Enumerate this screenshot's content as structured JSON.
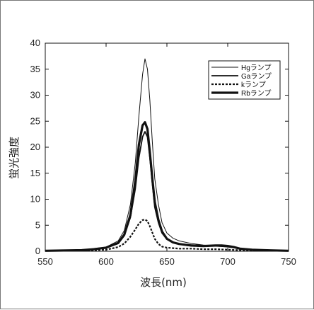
{
  "chart_data": {
    "type": "line",
    "title": "",
    "xlabel": "波長(nm)",
    "ylabel": "蛍光強度",
    "xlim": [
      550,
      750
    ],
    "ylim": [
      0,
      40
    ],
    "xticks": [
      550,
      600,
      650,
      700,
      750
    ],
    "yticks": [
      0,
      5,
      10,
      15,
      20,
      25,
      30,
      35,
      40
    ],
    "grid": false,
    "legend_position": "top-right",
    "series": [
      {
        "name": "Hgランプ",
        "style": "solid-thin",
        "x": [
          550,
          580,
          590,
          600,
          610,
          615,
          620,
          624,
          627,
          630,
          632,
          634,
          636,
          638,
          640,
          643,
          646,
          650,
          655,
          660,
          670,
          680,
          690,
          700,
          710,
          720,
          730,
          750
        ],
        "y": [
          0.1,
          0.2,
          0.5,
          0.8,
          2.0,
          4.0,
          9.0,
          17.0,
          26.0,
          34.0,
          37.0,
          35.0,
          29.0,
          21.0,
          14.0,
          9.0,
          5.5,
          3.5,
          2.5,
          2.0,
          1.5,
          1.2,
          1.0,
          0.8,
          0.5,
          0.3,
          0.2,
          0.1
        ]
      },
      {
        "name": "Gaランプ",
        "style": "solid-medium",
        "x": [
          550,
          580,
          590,
          600,
          610,
          615,
          620,
          624,
          627,
          630,
          632,
          634,
          636,
          638,
          640,
          643,
          646,
          650,
          655,
          660,
          670,
          680,
          690,
          700,
          710,
          720,
          730,
          750
        ],
        "y": [
          0.1,
          0.2,
          0.4,
          0.7,
          1.5,
          3.0,
          6.5,
          12.0,
          18.0,
          22.0,
          23.0,
          22.0,
          18.0,
          13.0,
          8.5,
          5.5,
          3.5,
          2.3,
          1.7,
          1.4,
          1.2,
          1.1,
          1.0,
          0.9,
          0.5,
          0.3,
          0.2,
          0.1
        ]
      },
      {
        "name": "kランプ",
        "style": "dashed",
        "x": [
          550,
          590,
          600,
          610,
          615,
          620,
          624,
          627,
          630,
          632,
          634,
          636,
          638,
          640,
          643,
          646,
          650,
          655,
          660,
          670,
          680,
          690,
          700,
          710,
          720,
          750
        ],
        "y": [
          0.1,
          0.2,
          0.3,
          0.8,
          1.5,
          2.8,
          4.2,
          5.3,
          6.0,
          6.1,
          5.8,
          4.8,
          3.6,
          2.4,
          1.4,
          0.9,
          0.7,
          0.6,
          0.5,
          0.5,
          0.4,
          0.4,
          0.3,
          0.2,
          0.1,
          0.1
        ]
      },
      {
        "name": "Rbランプ",
        "style": "solid-thick",
        "x": [
          550,
          580,
          590,
          600,
          610,
          615,
          620,
          624,
          627,
          630,
          632,
          634,
          636,
          638,
          640,
          643,
          646,
          650,
          655,
          660,
          670,
          680,
          690,
          695,
          700,
          705,
          710,
          720,
          730,
          750
        ],
        "y": [
          0.1,
          0.2,
          0.4,
          0.7,
          1.6,
          3.2,
          7.0,
          13.5,
          20.5,
          24.2,
          24.8,
          23.5,
          19.0,
          14.0,
          9.5,
          6.0,
          3.8,
          2.4,
          1.7,
          1.4,
          1.1,
          1.0,
          1.1,
          1.1,
          1.0,
          0.8,
          0.5,
          0.3,
          0.2,
          0.1
        ]
      }
    ]
  }
}
